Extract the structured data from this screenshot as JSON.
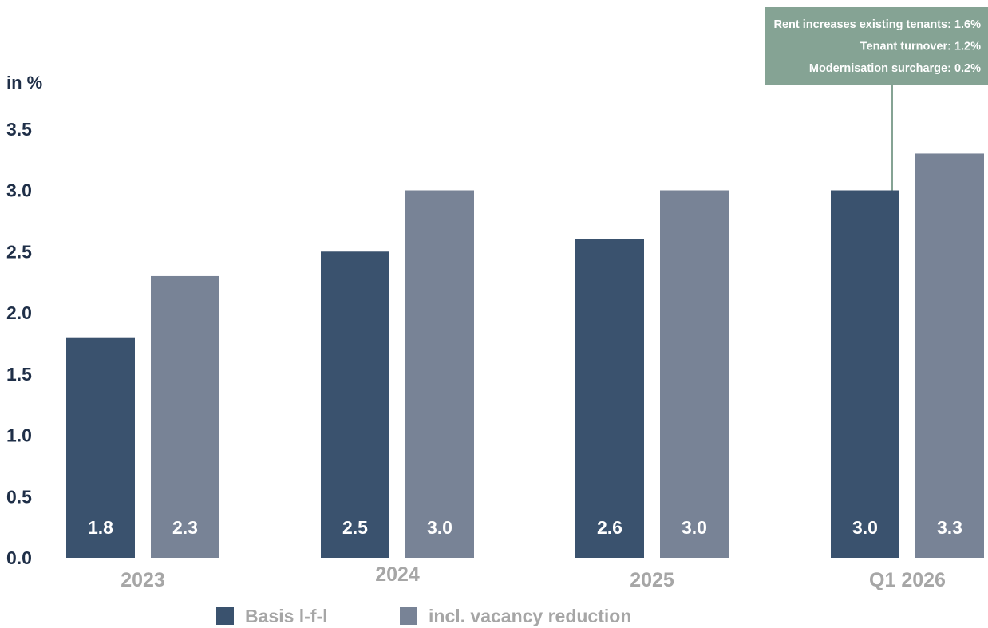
{
  "chart_data": {
    "type": "bar",
    "unit_label": "in %",
    "categories": [
      "2023",
      "2024",
      "2025",
      "Q1 2026"
    ],
    "series": [
      {
        "name": "Basis l-f-l",
        "color": "#3a526e",
        "values": [
          1.8,
          2.5,
          2.6,
          3.0
        ],
        "labels": [
          "1.8",
          "2.5",
          "2.6",
          "3.0"
        ]
      },
      {
        "name": "incl. vacancy reduction",
        "color": "#788396",
        "values": [
          2.3,
          3.0,
          3.0,
          3.3
        ],
        "labels": [
          "2.3",
          "3.0",
          "3.0",
          "3.3"
        ]
      }
    ],
    "ylim": [
      0,
      3.5
    ],
    "yticks": [
      "0.0",
      "0.5",
      "1.0",
      "1.5",
      "2.0",
      "2.5",
      "3.0",
      "3.5"
    ],
    "grid": false,
    "legend_position": "bottom",
    "annotation": {
      "attached_to": "Q1 2026 Basis l-f-l",
      "color": "#85a394",
      "lines": [
        "Rent increases existing tenants: 1.6%",
        "Tenant turnover: 1.2%",
        "Modernisation surcharge: 0.2%"
      ]
    }
  }
}
